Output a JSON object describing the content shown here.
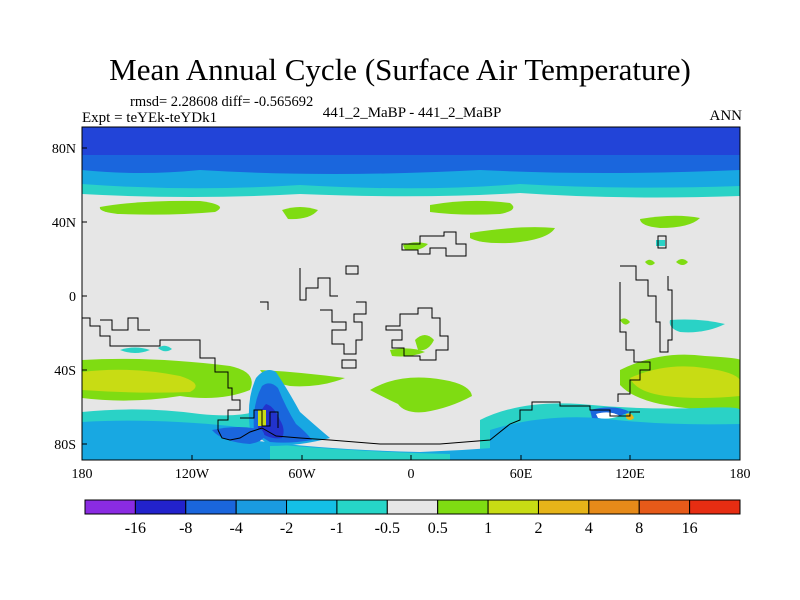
{
  "title": "Mean Annual Cycle (Surface Air Temperature)",
  "stats": "rmsd= 2.28608 diff= -0.565692",
  "expt": "Expt = teYEk-teYDk1",
  "case_label": "441_2_MaBP - 441_2_MaBP",
  "season": "ANN",
  "map": {
    "lon_ticks": [
      "180",
      "120W",
      "60W",
      "0",
      "60E",
      "120E",
      "180"
    ],
    "lat_ticks": [
      "80N",
      "40N",
      "0",
      "40S",
      "80S"
    ]
  },
  "colorbar": {
    "labels": [
      "-16",
      "-8",
      "-4",
      "-2",
      "-1",
      "-0.5",
      "0.5",
      "1",
      "2",
      "4",
      "8",
      "16"
    ],
    "colors": [
      "#8a2be2",
      "#2222cc",
      "#1a66dd",
      "#1a9be0",
      "#14c0e6",
      "#26d6c8",
      "#e6e6e6",
      "#7fdc12",
      "#c8dc14",
      "#e6b419",
      "#e68a19",
      "#e65a19",
      "#e62d12"
    ]
  },
  "palette": {
    "background": "#e6e6e6",
    "coast": "#000000"
  }
}
